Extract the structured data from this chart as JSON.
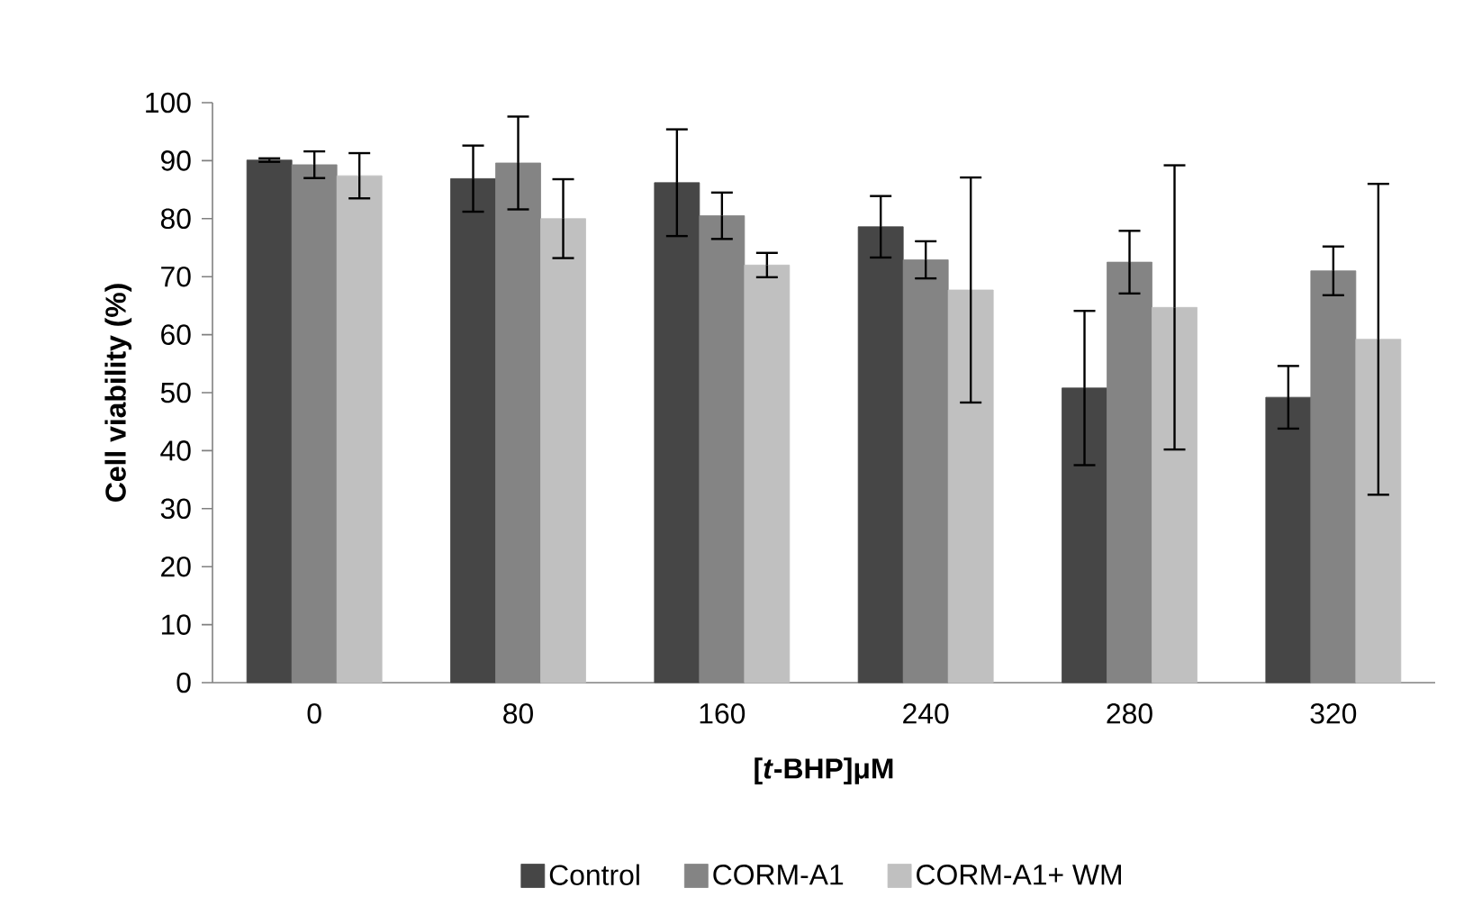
{
  "chart_data": {
    "type": "bar",
    "xlabel": "[*t*-BHP]μM",
    "ylabel": "Cell viability (%)",
    "categories": [
      "0",
      "80",
      "160",
      "240",
      "280",
      "320"
    ],
    "series": [
      {
        "name": "Control",
        "color": "#464646",
        "values": [
          90.1,
          86.9,
          86.2,
          78.6,
          50.8,
          49.2
        ],
        "errors": [
          0.3,
          5.7,
          9.2,
          5.3,
          13.3,
          5.4
        ]
      },
      {
        "name": "CORM-A1",
        "color": "#848484",
        "values": [
          89.3,
          89.6,
          80.5,
          72.9,
          72.5,
          71.0
        ],
        "errors": [
          2.3,
          8.0,
          4.0,
          3.2,
          5.4,
          4.2
        ]
      },
      {
        "name": "CORM-A1+ WM",
        "color": "#c0c0c0",
        "values": [
          87.4,
          80.0,
          72.0,
          67.7,
          64.7,
          59.2
        ],
        "errors": [
          3.9,
          6.8,
          2.1,
          19.4,
          24.5,
          26.8
        ]
      }
    ],
    "ylim": [
      0,
      100
    ],
    "yticks": [
      0,
      10,
      20,
      30,
      40,
      50,
      60,
      70,
      80,
      90,
      100
    ],
    "grid": false,
    "legend": "bottom"
  }
}
